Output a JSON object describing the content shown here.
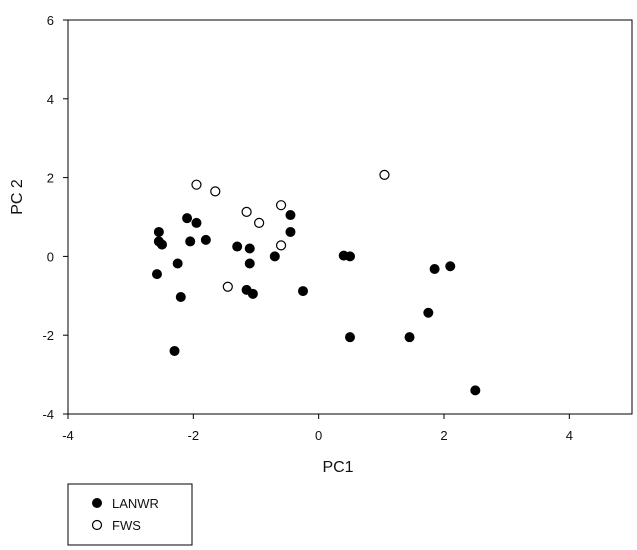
{
  "chart_data": {
    "type": "scatter",
    "xlabel": "PC1",
    "ylabel": "PC 2",
    "xlim": [
      -4,
      5
    ],
    "ylim": [
      -4,
      6
    ],
    "xticks": [
      -4,
      -2,
      0,
      2,
      4
    ],
    "yticks": [
      -4,
      -2,
      0,
      2,
      4,
      6
    ],
    "grid": false,
    "legend_position": "bottom-left, below plot",
    "series": [
      {
        "name": "LANWR",
        "marker": "filled-circle",
        "color": "#000000",
        "points": [
          [
            -2.55,
            0.62
          ],
          [
            -2.55,
            0.38
          ],
          [
            -2.5,
            0.3
          ],
          [
            -2.58,
            -0.45
          ],
          [
            -2.3,
            -2.4
          ],
          [
            -2.25,
            -0.18
          ],
          [
            -2.2,
            -1.03
          ],
          [
            -2.1,
            0.97
          ],
          [
            -2.05,
            0.38
          ],
          [
            -1.95,
            0.85
          ],
          [
            -1.8,
            0.42
          ],
          [
            -1.3,
            0.25
          ],
          [
            -1.1,
            0.2
          ],
          [
            -1.1,
            -0.18
          ],
          [
            -1.15,
            -0.85
          ],
          [
            -1.05,
            -0.95
          ],
          [
            -0.7,
            0.0
          ],
          [
            -0.45,
            1.05
          ],
          [
            -0.45,
            0.62
          ],
          [
            -0.25,
            -0.88
          ],
          [
            0.4,
            0.02
          ],
          [
            0.5,
            0.0
          ],
          [
            0.5,
            -2.05
          ],
          [
            1.45,
            -2.05
          ],
          [
            1.75,
            -1.43
          ],
          [
            1.85,
            -0.32
          ],
          [
            2.1,
            -0.25
          ],
          [
            2.5,
            -3.4
          ]
        ]
      },
      {
        "name": "FWS",
        "marker": "open-circle",
        "color": "#000000",
        "points": [
          [
            -1.95,
            1.82
          ],
          [
            -1.65,
            1.65
          ],
          [
            -1.45,
            -0.77
          ],
          [
            -1.15,
            1.13
          ],
          [
            -0.95,
            0.85
          ],
          [
            -0.6,
            1.3
          ],
          [
            -0.6,
            0.28
          ],
          [
            1.05,
            2.07
          ]
        ]
      }
    ]
  }
}
